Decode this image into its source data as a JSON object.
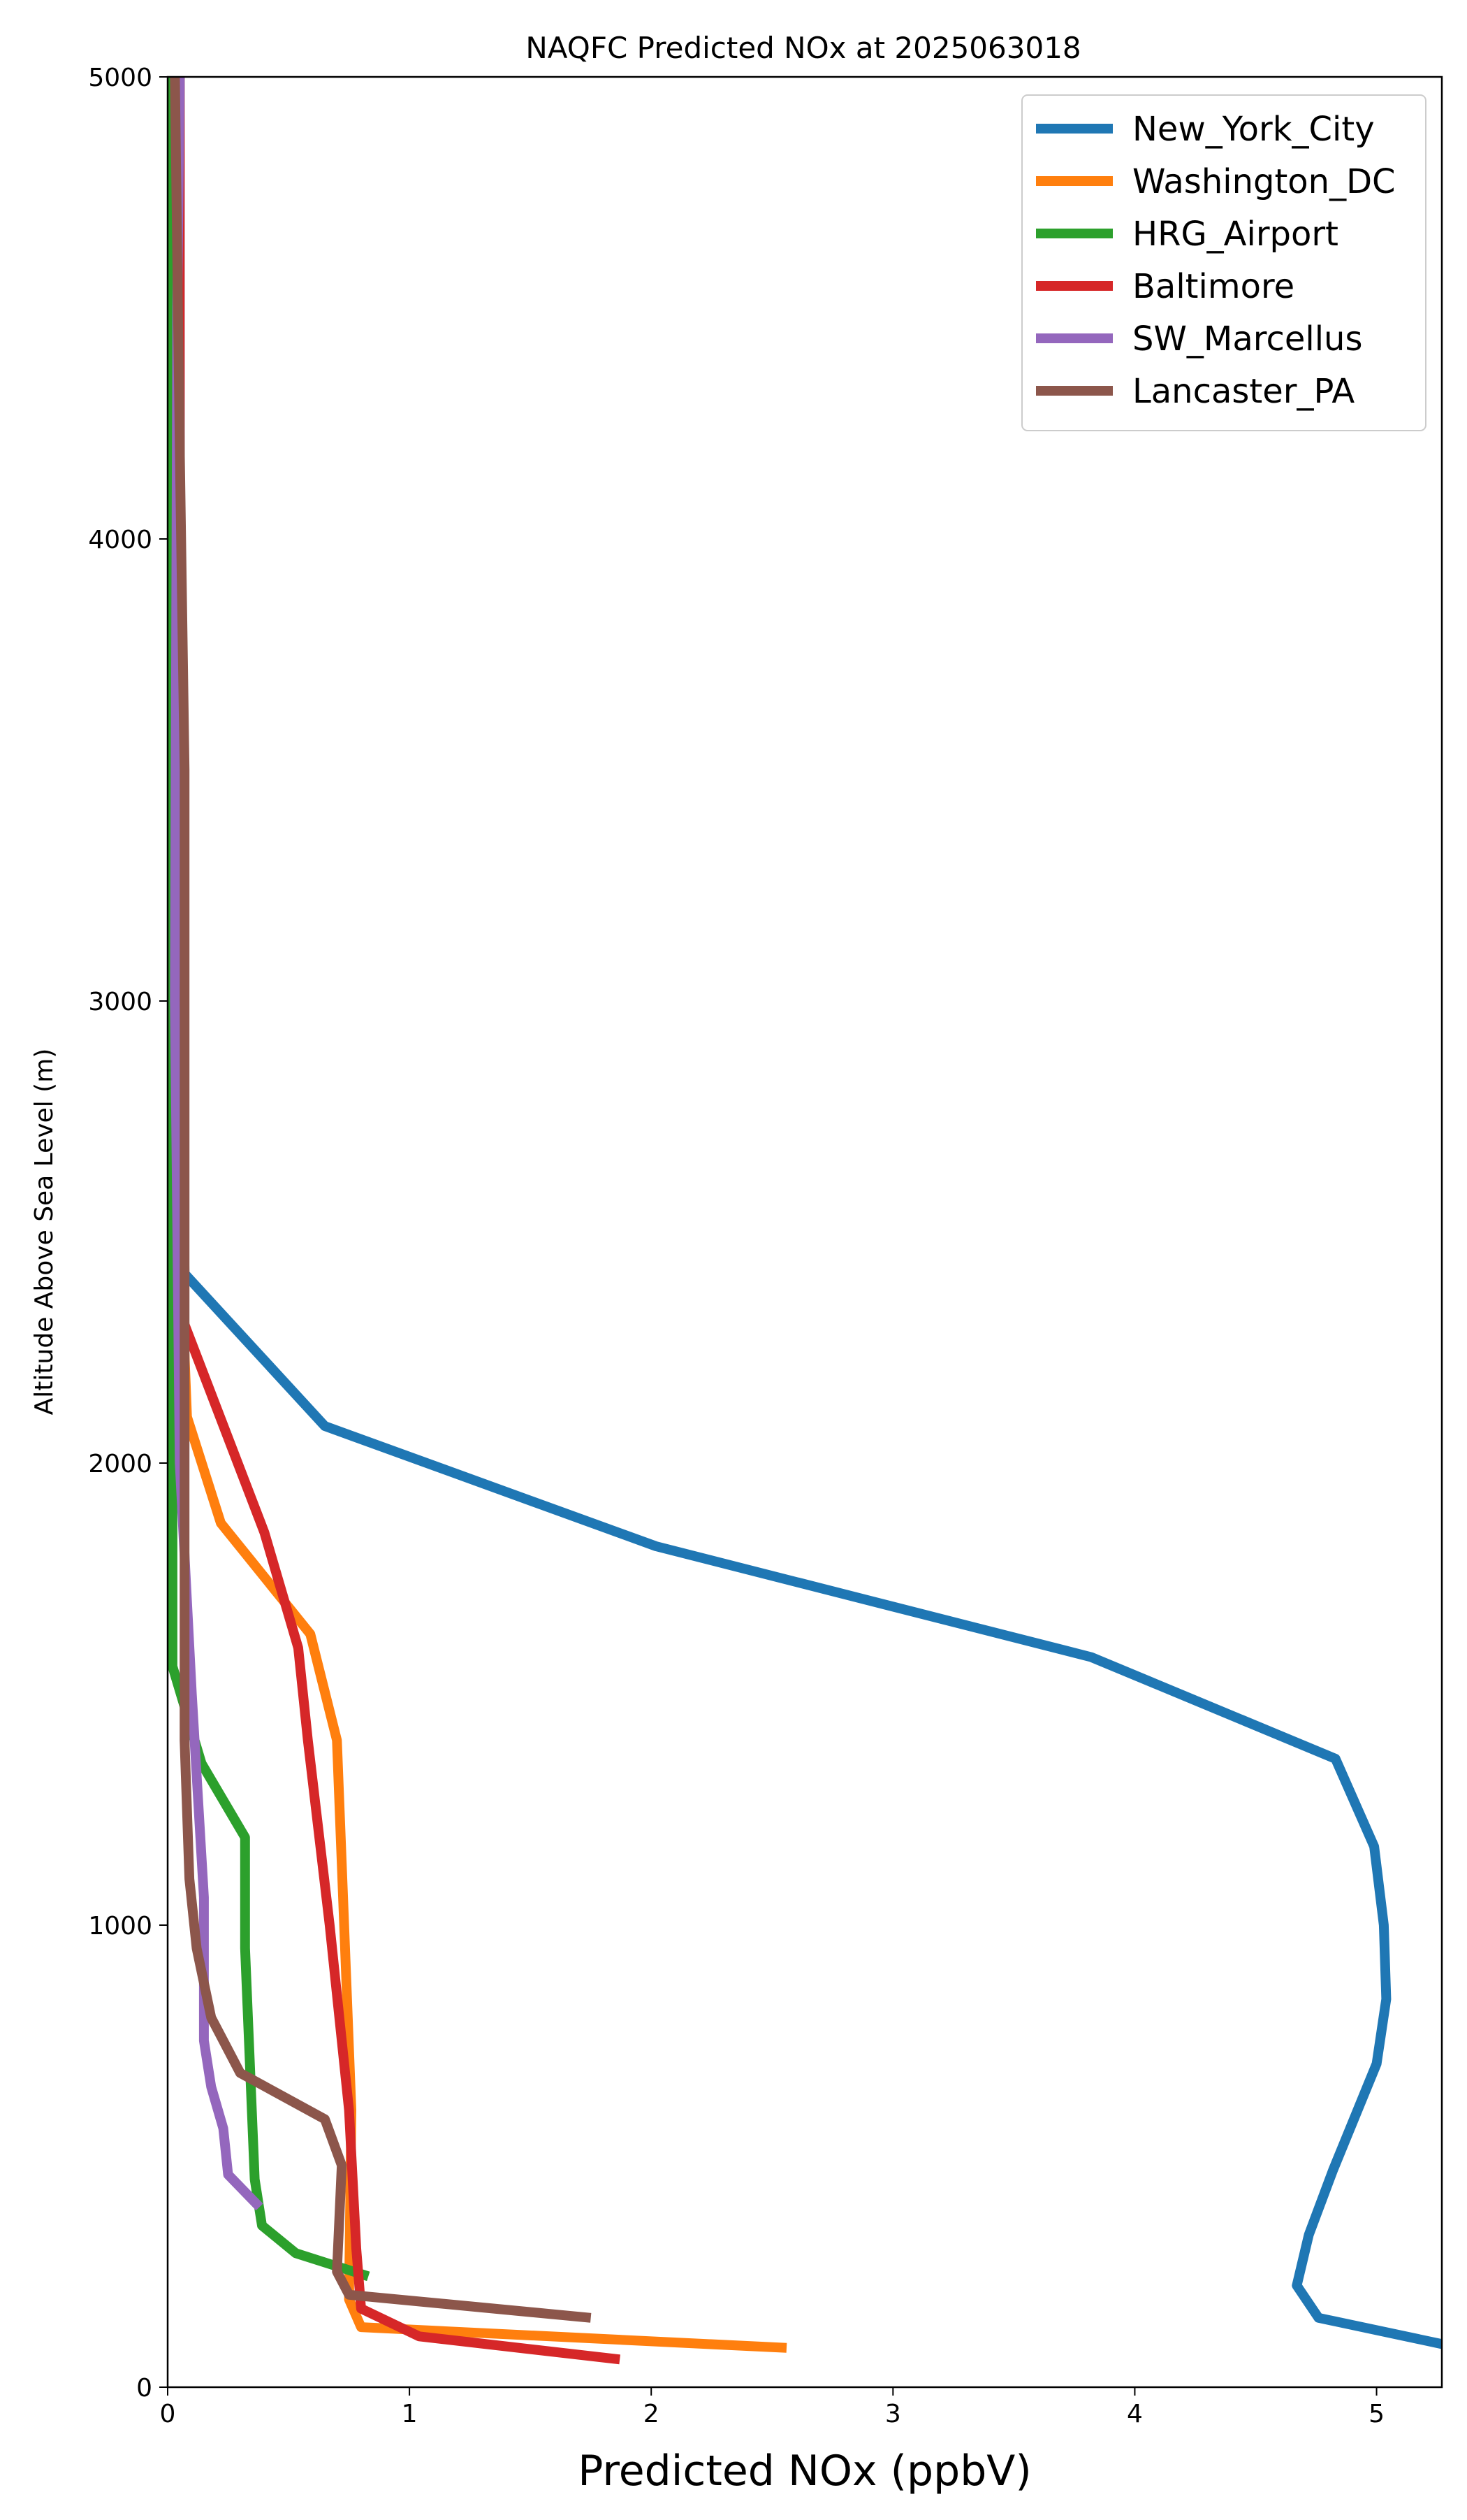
{
  "chart_data": {
    "type": "line",
    "title": "NAQFC Predicted NOx at 2025063018",
    "xlabel": "Predicted NOx (ppbV)",
    "ylabel": "Altitude Above Sea Level (m)",
    "xlim": [
      0,
      5.27
    ],
    "ylim": [
      0,
      5000
    ],
    "xticks": [
      "0",
      "1",
      "2",
      "3",
      "4",
      "5"
    ],
    "yticks": [
      "0",
      "1000",
      "2000",
      "3000",
      "4000",
      "5000"
    ],
    "grid": false,
    "legend_position": "upper right",
    "series": [
      {
        "name": "New_York_City",
        "color": "#1f77b4",
        "points": [
          [
            5.3,
            90
          ],
          [
            4.76,
            150
          ],
          [
            4.67,
            220
          ],
          [
            4.72,
            330
          ],
          [
            4.82,
            470
          ],
          [
            5.0,
            700
          ],
          [
            5.04,
            840
          ],
          [
            5.03,
            1000
          ],
          [
            4.99,
            1170
          ],
          [
            4.83,
            1360
          ],
          [
            3.82,
            1580
          ],
          [
            2.02,
            1820
          ],
          [
            0.65,
            2080
          ],
          [
            0.07,
            2410
          ],
          [
            0.05,
            3000
          ],
          [
            0.05,
            5000
          ]
        ]
      },
      {
        "name": "Washington_DC",
        "color": "#ff7f0e",
        "points": [
          [
            2.56,
            85
          ],
          [
            0.8,
            130
          ],
          [
            0.75,
            190
          ],
          [
            0.76,
            600
          ],
          [
            0.7,
            1400
          ],
          [
            0.59,
            1630
          ],
          [
            0.22,
            1870
          ],
          [
            0.08,
            2100
          ],
          [
            0.05,
            2500
          ],
          [
            0.04,
            5000
          ]
        ]
      },
      {
        "name": "HRG_Airport",
        "color": "#2ca02c",
        "points": [
          [
            0.83,
            240
          ],
          [
            0.53,
            290
          ],
          [
            0.39,
            350
          ],
          [
            0.36,
            450
          ],
          [
            0.32,
            950
          ],
          [
            0.32,
            1190
          ],
          [
            0.14,
            1350
          ],
          [
            0.02,
            1560
          ],
          [
            0.02,
            2000
          ],
          [
            0.02,
            5000
          ]
        ]
      },
      {
        "name": "Baltimore",
        "color": "#d62728",
        "points": [
          [
            1.87,
            60
          ],
          [
            1.04,
            110
          ],
          [
            0.8,
            170
          ],
          [
            0.78,
            300
          ],
          [
            0.75,
            600
          ],
          [
            0.67,
            1000
          ],
          [
            0.58,
            1400
          ],
          [
            0.54,
            1600
          ],
          [
            0.4,
            1850
          ],
          [
            0.07,
            2300
          ],
          [
            0.05,
            2500
          ],
          [
            0.05,
            5000
          ]
        ]
      },
      {
        "name": "SW_Marcellus",
        "color": "#9467bd",
        "points": [
          [
            0.38,
            390
          ],
          [
            0.25,
            460
          ],
          [
            0.23,
            560
          ],
          [
            0.18,
            650
          ],
          [
            0.15,
            750
          ],
          [
            0.15,
            1060
          ],
          [
            0.1,
            1500
          ],
          [
            0.05,
            2000
          ],
          [
            0.03,
            3000
          ],
          [
            0.04,
            4500
          ],
          [
            0.05,
            5000
          ]
        ]
      },
      {
        "name": "Lancaster_PA",
        "color": "#8c564b",
        "points": [
          [
            1.75,
            150
          ],
          [
            0.75,
            200
          ],
          [
            0.7,
            250
          ],
          [
            0.72,
            480
          ],
          [
            0.65,
            580
          ],
          [
            0.3,
            680
          ],
          [
            0.18,
            800
          ],
          [
            0.12,
            950
          ],
          [
            0.09,
            1100
          ],
          [
            0.07,
            1400
          ],
          [
            0.07,
            1700
          ],
          [
            0.07,
            2500
          ],
          [
            0.07,
            3500
          ],
          [
            0.05,
            4200
          ],
          [
            0.03,
            5000
          ]
        ]
      }
    ]
  }
}
